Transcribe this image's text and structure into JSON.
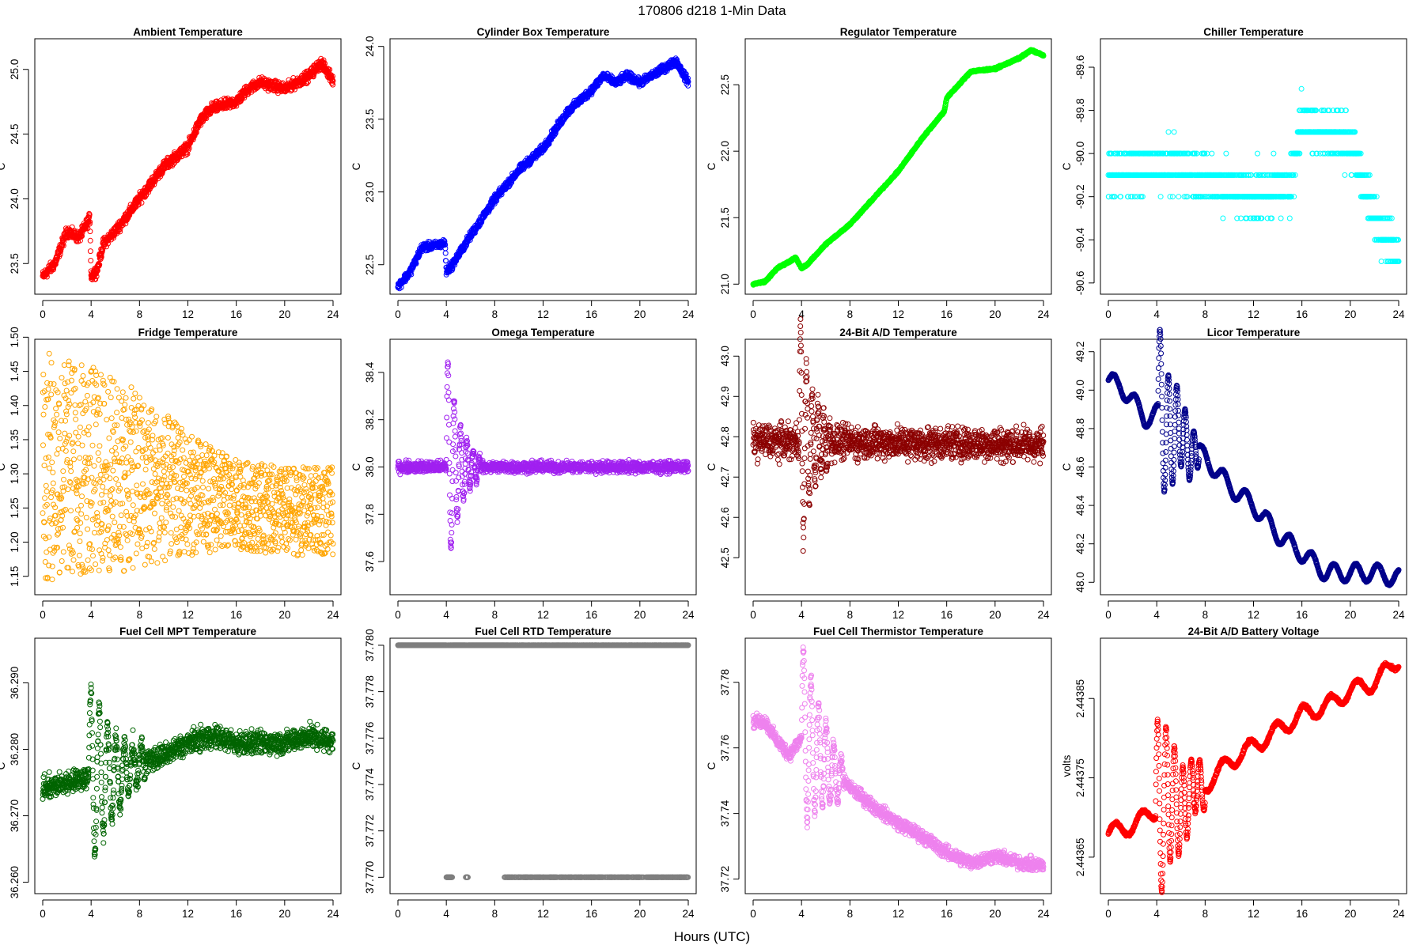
{
  "page": {
    "title": "170806    d218    1-Min Data",
    "x_axis_title": "Hours (UTC)"
  },
  "chart_data": [
    {
      "type": "scatter",
      "title": "Ambient Temperature",
      "ylabel": "C",
      "color": "#ff0000",
      "xlim": [
        0,
        24
      ],
      "xticks": [
        "0",
        "4",
        "8",
        "12",
        "16",
        "20",
        "24"
      ],
      "ylim": [
        23.3,
        25.2
      ],
      "yticks": [
        "23.5",
        "24.0",
        "24.5",
        "25.0"
      ],
      "noise": 0.06,
      "curve": [
        [
          0,
          23.4
        ],
        [
          1,
          23.5
        ],
        [
          2,
          23.75
        ],
        [
          3,
          23.7
        ],
        [
          3.9,
          23.85
        ],
        [
          4,
          23.4
        ],
        [
          4.5,
          23.45
        ],
        [
          5,
          23.65
        ],
        [
          6,
          23.75
        ],
        [
          8,
          24.0
        ],
        [
          10,
          24.25
        ],
        [
          12,
          24.4
        ],
        [
          13,
          24.6
        ],
        [
          14,
          24.7
        ],
        [
          16,
          24.75
        ],
        [
          17,
          24.85
        ],
        [
          18,
          24.9
        ],
        [
          20,
          24.85
        ],
        [
          22,
          24.95
        ],
        [
          23,
          25.05
        ],
        [
          24,
          24.92
        ]
      ]
    },
    {
      "type": "scatter",
      "title": "Cylinder Box Temperature",
      "ylabel": "C",
      "color": "#0000ff",
      "xlim": [
        0,
        24
      ],
      "xticks": [
        "0",
        "4",
        "8",
        "12",
        "16",
        "20",
        "24"
      ],
      "ylim": [
        22.33,
        24.02
      ],
      "yticks": [
        "22.5",
        "23.0",
        "23.5",
        "24.0"
      ],
      "noise": 0.04,
      "curve": [
        [
          0,
          22.35
        ],
        [
          1,
          22.45
        ],
        [
          2,
          22.62
        ],
        [
          3,
          22.63
        ],
        [
          3.9,
          22.65
        ],
        [
          4,
          22.45
        ],
        [
          4.5,
          22.5
        ],
        [
          6,
          22.7
        ],
        [
          8,
          22.95
        ],
        [
          10,
          23.15
        ],
        [
          12,
          23.3
        ],
        [
          14,
          23.55
        ],
        [
          16,
          23.7
        ],
        [
          17,
          23.8
        ],
        [
          18,
          23.75
        ],
        [
          19,
          23.8
        ],
        [
          20,
          23.75
        ],
        [
          21,
          23.8
        ],
        [
          22,
          23.85
        ],
        [
          23,
          23.9
        ],
        [
          24,
          23.75
        ]
      ]
    },
    {
      "type": "scatter",
      "title": "Regulator Temperature",
      "ylabel": "C",
      "color": "#00ff00",
      "xlim": [
        0,
        24
      ],
      "xticks": [
        "0",
        "4",
        "8",
        "12",
        "16",
        "20",
        "24"
      ],
      "ylim": [
        20.96,
        22.81
      ],
      "yticks": [
        "21.0",
        "21.5",
        "22.0",
        "22.5"
      ],
      "noise": 0.01,
      "curve": [
        [
          0,
          21.0
        ],
        [
          1,
          21.02
        ],
        [
          2,
          21.12
        ],
        [
          3,
          21.17
        ],
        [
          3.5,
          21.2
        ],
        [
          4,
          21.12
        ],
        [
          4.5,
          21.15
        ],
        [
          6,
          21.3
        ],
        [
          8,
          21.45
        ],
        [
          10,
          21.65
        ],
        [
          12,
          21.85
        ],
        [
          14,
          22.1
        ],
        [
          15.8,
          22.3
        ],
        [
          16,
          22.4
        ],
        [
          17,
          22.5
        ],
        [
          18,
          22.6
        ],
        [
          20,
          22.62
        ],
        [
          22,
          22.7
        ],
        [
          23,
          22.76
        ],
        [
          24,
          22.72
        ]
      ]
    },
    {
      "type": "scatter",
      "title": "Chiller Temperature",
      "ylabel": "C",
      "color": "#00ffff",
      "xlim": [
        0,
        24
      ],
      "xticks": [
        "0",
        "4",
        "8",
        "12",
        "16",
        "20",
        "24"
      ],
      "ylim": [
        -90.63,
        -89.49
      ],
      "yticks": [
        "-89.6",
        "-89.8",
        "-90.0",
        "-90.2",
        "-90.4",
        "-90.6"
      ],
      "discrete": true,
      "levels": [
        -89.6,
        -89.7,
        -89.8,
        -89.9,
        -90.0,
        -90.1,
        -90.2,
        -90.3,
        -90.4,
        -90.5
      ],
      "curve": [
        [
          0,
          -90.1
        ],
        [
          4,
          -90.05
        ],
        [
          8,
          -90.1
        ],
        [
          12,
          -90.2
        ],
        [
          15,
          -90.15
        ],
        [
          16,
          -89.85
        ],
        [
          20,
          -89.95
        ],
        [
          22,
          -90.3
        ],
        [
          24,
          -90.45
        ]
      ]
    },
    {
      "type": "scatter",
      "title": "Fridge Temperature",
      "ylabel": "C",
      "color": "#ffa500",
      "xlim": [
        0,
        24
      ],
      "xticks": [
        "0",
        "4",
        "8",
        "12",
        "16",
        "20",
        "24"
      ],
      "ylim": [
        1.13,
        1.49
      ],
      "yticks": [
        "1.15",
        "1.20",
        "1.25",
        "1.30",
        "1.35",
        "1.40",
        "1.45",
        "1.50"
      ],
      "band": true,
      "bandLo": [
        [
          0,
          1.14
        ],
        [
          4,
          1.15
        ],
        [
          8,
          1.16
        ],
        [
          12,
          1.18
        ],
        [
          16,
          1.19
        ],
        [
          20,
          1.18
        ],
        [
          24,
          1.18
        ]
      ],
      "bandHi": [
        [
          0,
          1.48
        ],
        [
          4,
          1.46
        ],
        [
          8,
          1.42
        ],
        [
          12,
          1.36
        ],
        [
          16,
          1.32
        ],
        [
          20,
          1.31
        ],
        [
          24,
          1.31
        ]
      ]
    },
    {
      "type": "scatter",
      "title": "Omega Temperature",
      "ylabel": "C",
      "color": "#a020f0",
      "xlim": [
        0,
        24
      ],
      "xticks": [
        "0",
        "4",
        "8",
        "12",
        "16",
        "20",
        "24"
      ],
      "ylim": [
        37.48,
        38.52
      ],
      "yticks": [
        "37.6",
        "37.8",
        "38.0",
        "38.2",
        "38.4"
      ],
      "noise": 0.035,
      "osc": {
        "start": 4.0,
        "end": 6.8,
        "freq": 1.2,
        "amp": 0.5,
        "decay": 0.9
      },
      "curve": [
        [
          0,
          38.0
        ],
        [
          24,
          38.0
        ]
      ]
    },
    {
      "type": "scatter",
      "title": "24-Bit A/D Temperature",
      "ylabel": "C",
      "color": "#8b0000",
      "xlim": [
        0,
        24
      ],
      "xticks": [
        "0",
        "4",
        "8",
        "12",
        "16",
        "20",
        "24"
      ],
      "ylim": [
        42.42,
        43.03
      ],
      "yticks": [
        "42.5",
        "42.6",
        "42.7",
        "42.8",
        "42.9",
        "43.0"
      ],
      "noise": 0.06,
      "osc": {
        "start": 3.8,
        "end": 6.5,
        "freq": 1.3,
        "amp": 0.3,
        "decay": 0.8
      },
      "curve": [
        [
          0,
          42.79
        ],
        [
          24,
          42.78
        ]
      ]
    },
    {
      "type": "scatter",
      "title": "Licor Temperature",
      "ylabel": "C",
      "color": "#00008b",
      "xlim": [
        0,
        24
      ],
      "xticks": [
        "0",
        "4",
        "8",
        "12",
        "16",
        "20",
        "24"
      ],
      "ylim": [
        47.96,
        49.24
      ],
      "yticks": [
        "48.0",
        "48.2",
        "48.4",
        "48.6",
        "48.8",
        "49.0",
        "49.2"
      ],
      "noise": 0.006,
      "wave": {
        "freq": 0.55,
        "amp": 0.045
      },
      "osc": {
        "start": 4.1,
        "end": 7.5,
        "freq": 0.9,
        "amp": 0.45,
        "decay": 0.45
      },
      "curve": [
        [
          0,
          49.05
        ],
        [
          1,
          49.02
        ],
        [
          2,
          48.95
        ],
        [
          3,
          48.85
        ],
        [
          4,
          48.88
        ],
        [
          6,
          48.75
        ],
        [
          8,
          48.65
        ],
        [
          10,
          48.5
        ],
        [
          12,
          48.4
        ],
        [
          14,
          48.25
        ],
        [
          16,
          48.15
        ],
        [
          18,
          48.05
        ],
        [
          20,
          48.05
        ],
        [
          22,
          48.05
        ],
        [
          24,
          48.02
        ]
      ]
    },
    {
      "type": "scatter",
      "title": "Fuel Cell MPT Temperature",
      "ylabel": "C",
      "color": "#006400",
      "xlim": [
        0,
        24
      ],
      "xticks": [
        "0",
        "4",
        "8",
        "12",
        "16",
        "20",
        "24"
      ],
      "ylim": [
        36.259,
        36.296
      ],
      "yticks": [
        "36.260",
        "36.270",
        "36.280",
        "36.290"
      ],
      "noise": 0.0025,
      "osc": {
        "start": 3.8,
        "end": 8.5,
        "freq": 0.9,
        "amp": 0.014,
        "decay": 0.4
      },
      "curve": [
        [
          0,
          36.274
        ],
        [
          2,
          36.275
        ],
        [
          4,
          36.276
        ],
        [
          6,
          36.276
        ],
        [
          8,
          36.278
        ],
        [
          10,
          36.279
        ],
        [
          12,
          36.281
        ],
        [
          14,
          36.282
        ],
        [
          16,
          36.281
        ],
        [
          18,
          36.281
        ],
        [
          20,
          36.281
        ],
        [
          22,
          36.282
        ],
        [
          24,
          36.281
        ]
      ]
    },
    {
      "type": "scatter",
      "title": "Fuel Cell RTD Temperature",
      "ylabel": "C",
      "color": "#7f7f7f",
      "xlim": [
        0,
        24
      ],
      "xticks": [
        "0",
        "4",
        "8",
        "12",
        "16",
        "20",
        "24"
      ],
      "ylim": [
        37.7695,
        37.7801
      ],
      "yticks": [
        "37.770",
        "37.772",
        "37.774",
        "37.776",
        "37.778",
        "37.780"
      ],
      "rtd": true,
      "topLevel": 37.78,
      "bottomLevel": 37.77
    },
    {
      "type": "scatter",
      "title": "Fuel Cell Thermistor Temperature",
      "ylabel": "C",
      "color": "#ee82ee",
      "xlim": [
        0,
        24
      ],
      "xticks": [
        "0",
        "4",
        "8",
        "12",
        "16",
        "20",
        "24"
      ],
      "ylim": [
        37.717,
        37.792
      ],
      "yticks": [
        "37.72",
        "37.74",
        "37.76",
        "37.78"
      ],
      "noise": 0.003,
      "osc": {
        "start": 4.0,
        "end": 7.5,
        "freq": 1.0,
        "amp": 0.03,
        "decay": 0.45
      },
      "curve": [
        [
          0,
          37.768
        ],
        [
          1,
          37.768
        ],
        [
          2,
          37.762
        ],
        [
          3,
          37.758
        ],
        [
          4,
          37.763
        ],
        [
          6,
          37.755
        ],
        [
          8,
          37.748
        ],
        [
          10,
          37.742
        ],
        [
          12,
          37.737
        ],
        [
          14,
          37.733
        ],
        [
          16,
          37.728
        ],
        [
          18,
          37.725
        ],
        [
          20,
          37.727
        ],
        [
          22,
          37.725
        ],
        [
          24,
          37.724
        ]
      ]
    },
    {
      "type": "scatter",
      "title": "24-Bit A/D Battery Voltage",
      "ylabel": "volts",
      "color": "#ff0000",
      "xlim": [
        0,
        24
      ],
      "xticks": [
        "0",
        "4",
        "8",
        "12",
        "16",
        "20",
        "24"
      ],
      "ylim": [
        2.44361,
        2.44392
      ],
      "yticks": [
        "2.44365",
        "2.44375",
        "2.44385"
      ],
      "noise": 3e-06,
      "wave": {
        "freq": 0.45,
        "amp": 1e-05
      },
      "osc": {
        "start": 3.9,
        "end": 8.0,
        "freq": 0.9,
        "amp": 0.00013,
        "decay": 0.4
      },
      "curve": [
        [
          0,
          2.44368
        ],
        [
          2,
          2.44369
        ],
        [
          4,
          2.44371
        ],
        [
          6,
          2.44372
        ],
        [
          8,
          2.44374
        ],
        [
          10,
          2.44377
        ],
        [
          12,
          2.44379
        ],
        [
          14,
          2.44381
        ],
        [
          16,
          2.44383
        ],
        [
          18,
          2.44384
        ],
        [
          20,
          2.44386
        ],
        [
          22,
          2.44387
        ],
        [
          24,
          2.4439
        ]
      ]
    }
  ]
}
